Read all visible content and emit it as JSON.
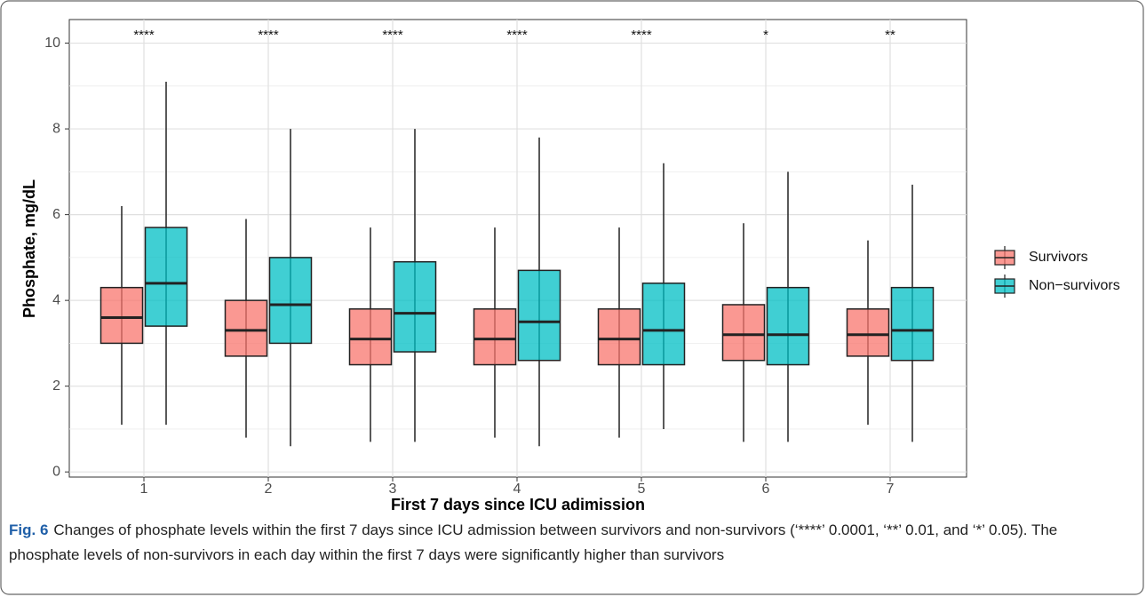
{
  "chart_data": {
    "type": "box",
    "y_label": "Phosphate, mg/dL",
    "x_label": "First 7 days since ICU adimission",
    "categories": [
      "1",
      "2",
      "3",
      "4",
      "5",
      "6",
      "7"
    ],
    "annotations": [
      "****",
      "****",
      "****",
      "****",
      "****",
      "*",
      "**"
    ],
    "series": [
      {
        "name": "Survivors",
        "color": "#F8766D",
        "low": [
          1.1,
          0.8,
          0.7,
          0.8,
          0.8,
          0.7,
          1.1
        ],
        "q1": [
          3.0,
          2.7,
          2.5,
          2.5,
          2.5,
          2.6,
          2.7
        ],
        "median": [
          3.6,
          3.3,
          3.1,
          3.1,
          3.1,
          3.2,
          3.2
        ],
        "q3": [
          4.3,
          4.0,
          3.8,
          3.8,
          3.8,
          3.9,
          3.8
        ],
        "high": [
          6.2,
          5.9,
          5.7,
          5.7,
          5.7,
          5.8,
          5.4
        ]
      },
      {
        "name": "Non−survivors",
        "color": "#00BFC4",
        "low": [
          1.1,
          0.6,
          0.7,
          0.6,
          1.0,
          0.7,
          0.7
        ],
        "q1": [
          3.4,
          3.0,
          2.8,
          2.6,
          2.5,
          2.5,
          2.6
        ],
        "median": [
          4.4,
          3.9,
          3.7,
          3.5,
          3.3,
          3.2,
          3.3
        ],
        "q3": [
          5.7,
          5.0,
          4.9,
          4.7,
          4.4,
          4.3,
          4.3
        ],
        "high": [
          9.1,
          8.0,
          8.0,
          7.8,
          7.2,
          7.0,
          6.7
        ]
      }
    ],
    "ylim": [
      -0.12,
      10.55
    ],
    "yticks": [
      0,
      2,
      4,
      6,
      8,
      10
    ],
    "grid": true
  },
  "caption": {
    "label": "Fig. 6",
    "text": "Changes of phosphate levels within the first 7 days since ICU admission between survivors and non-survivors (‘****’ 0.0001, ‘**’ 0.01, and ‘*’ 0.05). The phosphate levels of non-survivors in each day within the first 7 days were significantly higher than survivors"
  }
}
